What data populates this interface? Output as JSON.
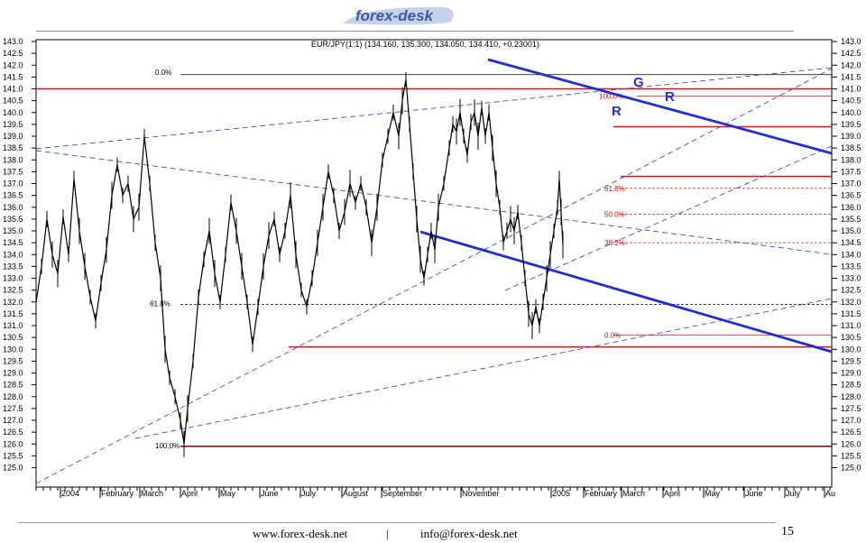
{
  "header": {
    "logo_text": "forex-desk"
  },
  "footer": {
    "website": "www.forex-desk.net",
    "separator": "|",
    "email": "info@forex-desk.net",
    "page_number": "15"
  },
  "chart_data": {
    "type": "line",
    "title": "EUR/JPY(1:1) (134.160, 135.300, 134.050, 134.410, +0.23001)",
    "x_labels": [
      "2004",
      "February",
      "March",
      "April",
      "May",
      "June",
      "July",
      "August",
      "September",
      "November",
      "2005",
      "February",
      "March",
      "April",
      "May",
      "June",
      "July",
      "Au"
    ],
    "y_ticks": [
      "143.0",
      "142.5",
      "142.0",
      "141.5",
      "141.0",
      "140.5",
      "140.0",
      "139.5",
      "139.0",
      "138.5",
      "138.0",
      "137.5",
      "137.0",
      "136.5",
      "136.0",
      "135.5",
      "135.0",
      "134.5",
      "134.0",
      "133.5",
      "133.0",
      "132.5",
      "132.0",
      "131.5",
      "131.0",
      "130.5",
      "130.0",
      "129.5",
      "129.0",
      "128.5",
      "128.0",
      "127.5",
      "127.0",
      "126.5",
      "126.0",
      "125.5",
      "125.0"
    ],
    "ylim": [
      124.6,
      143.1
    ],
    "price_series": {
      "name": "EUR/JPY",
      "points": [
        [
          0,
          132.0
        ],
        [
          6,
          133.5
        ],
        [
          12,
          135.5
        ],
        [
          18,
          134.0
        ],
        [
          24,
          133.2
        ],
        [
          30,
          135.6
        ],
        [
          36,
          134.0
        ],
        [
          42,
          137.2
        ],
        [
          48,
          135.0
        ],
        [
          54,
          133.5
        ],
        [
          60,
          132.2
        ],
        [
          66,
          131.2
        ],
        [
          72,
          132.8
        ],
        [
          78,
          134.2
        ],
        [
          84,
          136.5
        ],
        [
          90,
          137.8
        ],
        [
          96,
          136.5
        ],
        [
          102,
          137.0
        ],
        [
          108,
          135.5
        ],
        [
          114,
          136.0
        ],
        [
          120,
          139.0
        ],
        [
          126,
          137.0
        ],
        [
          132,
          134.5
        ],
        [
          138,
          133.0
        ],
        [
          143,
          130.0
        ],
        [
          148,
          128.8
        ],
        [
          154,
          128.0
        ],
        [
          160,
          127.0
        ],
        [
          164,
          126.0
        ],
        [
          168,
          127.5
        ],
        [
          174,
          129.5
        ],
        [
          180,
          132.2
        ],
        [
          186,
          133.8
        ],
        [
          192,
          135.0
        ],
        [
          198,
          133.2
        ],
        [
          204,
          132.0
        ],
        [
          210,
          134.0
        ],
        [
          216,
          136.2
        ],
        [
          222,
          135.0
        ],
        [
          228,
          133.5
        ],
        [
          234,
          132.0
        ],
        [
          240,
          130.2
        ],
        [
          246,
          131.8
        ],
        [
          252,
          133.5
        ],
        [
          258,
          134.8
        ],
        [
          264,
          135.5
        ],
        [
          270,
          134.0
        ],
        [
          276,
          135.0
        ],
        [
          282,
          136.5
        ],
        [
          288,
          134.0
        ],
        [
          294,
          132.5
        ],
        [
          300,
          131.8
        ],
        [
          306,
          133.0
        ],
        [
          312,
          134.5
        ],
        [
          318,
          136.0
        ],
        [
          324,
          137.5
        ],
        [
          330,
          136.5
        ],
        [
          336,
          135.0
        ],
        [
          342,
          135.8
        ],
        [
          348,
          137.0
        ],
        [
          354,
          136.2
        ],
        [
          360,
          137.0
        ],
        [
          366,
          136.0
        ],
        [
          372,
          134.5
        ],
        [
          378,
          136.0
        ],
        [
          384,
          138.0
        ],
        [
          390,
          139.0
        ],
        [
          396,
          140.0
        ],
        [
          402,
          139.0
        ],
        [
          406,
          140.5
        ],
        [
          410,
          141.4
        ],
        [
          414,
          139.5
        ],
        [
          418,
          137.5
        ],
        [
          422,
          135.5
        ],
        [
          426,
          133.8
        ],
        [
          430,
          133.0
        ],
        [
          434,
          134.0
        ],
        [
          438,
          135.0
        ],
        [
          442,
          134.2
        ],
        [
          446,
          136.0
        ],
        [
          452,
          137.0
        ],
        [
          458,
          138.5
        ],
        [
          462,
          139.5
        ],
        [
          466,
          139.2
        ],
        [
          470,
          140.0
        ],
        [
          474,
          139.0
        ],
        [
          478,
          138.2
        ],
        [
          482,
          139.6
        ],
        [
          486,
          140.0
        ],
        [
          490,
          139.0
        ],
        [
          494,
          140.2
        ],
        [
          498,
          139.0
        ],
        [
          502,
          140.0
        ],
        [
          506,
          138.5
        ],
        [
          510,
          137.0
        ],
        [
          514,
          136.0
        ],
        [
          518,
          134.5
        ],
        [
          522,
          135.0
        ],
        [
          526,
          135.5
        ],
        [
          530,
          135.0
        ],
        [
          534,
          135.8
        ],
        [
          538,
          134.5
        ],
        [
          542,
          133.0
        ],
        [
          546,
          131.5
        ],
        [
          550,
          131.0
        ],
        [
          554,
          131.8
        ],
        [
          558,
          131.0
        ],
        [
          562,
          132.0
        ],
        [
          566,
          133.0
        ],
        [
          570,
          134.0
        ],
        [
          574,
          135.0
        ],
        [
          578,
          136.0
        ],
        [
          580,
          137.2
        ],
        [
          582,
          135.8
        ],
        [
          584,
          134.41
        ]
      ]
    },
    "fib_retracement_1": [
      {
        "label": "0.0%",
        "value": 141.6
      },
      {
        "label": "61.8%",
        "value": 131.9
      },
      {
        "label": "100.0%",
        "value": 125.9
      }
    ],
    "fib_retracement_2": [
      {
        "label": "100.0%",
        "value": 140.7
      },
      {
        "label": "61.8%",
        "value": 136.8
      },
      {
        "label": "50.0%",
        "value": 135.7
      },
      {
        "label": "38.2%",
        "value": 134.5
      },
      {
        "label": "0.0%",
        "value": 130.6
      }
    ],
    "horizontal_levels": [
      141.0,
      139.4,
      137.3,
      130.1,
      125.9
    ],
    "pattern_annotations": [
      "R",
      "G",
      "R"
    ]
  }
}
